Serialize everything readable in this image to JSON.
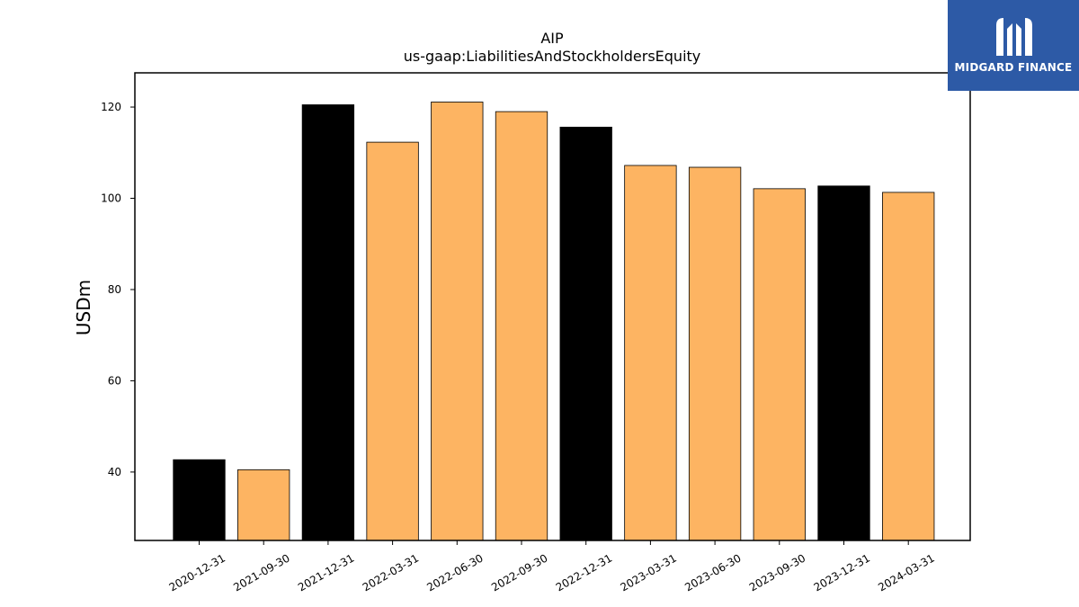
{
  "brand": {
    "name": "MIDGARD FINANCE",
    "colors": {
      "background": "#2d5aa6",
      "text": "#ffffff"
    }
  },
  "chart_data": {
    "type": "bar",
    "title": "AIP",
    "subtitle": "us-gaap:LiabilitiesAndStockholdersEquity",
    "xlabel": "",
    "ylabel": "USDm",
    "ylim": [
      25,
      127.5
    ],
    "yticks": [
      40,
      60,
      80,
      100,
      120
    ],
    "grid": false,
    "categories": [
      "2020-12-31",
      "2021-09-30",
      "2021-12-31",
      "2022-03-31",
      "2022-06-30",
      "2022-09-30",
      "2022-12-31",
      "2023-03-31",
      "2023-06-30",
      "2023-09-30",
      "2023-12-31",
      "2024-03-31"
    ],
    "values": [
      42.7,
      40.5,
      120.5,
      112.3,
      121.1,
      119.0,
      115.6,
      107.2,
      106.8,
      102.1,
      102.7,
      101.3
    ],
    "colors": [
      "#000000",
      "#fdb462",
      "#000000",
      "#fdb462",
      "#fdb462",
      "#fdb462",
      "#000000",
      "#fdb462",
      "#fdb462",
      "#fdb462",
      "#000000",
      "#fdb462"
    ]
  }
}
